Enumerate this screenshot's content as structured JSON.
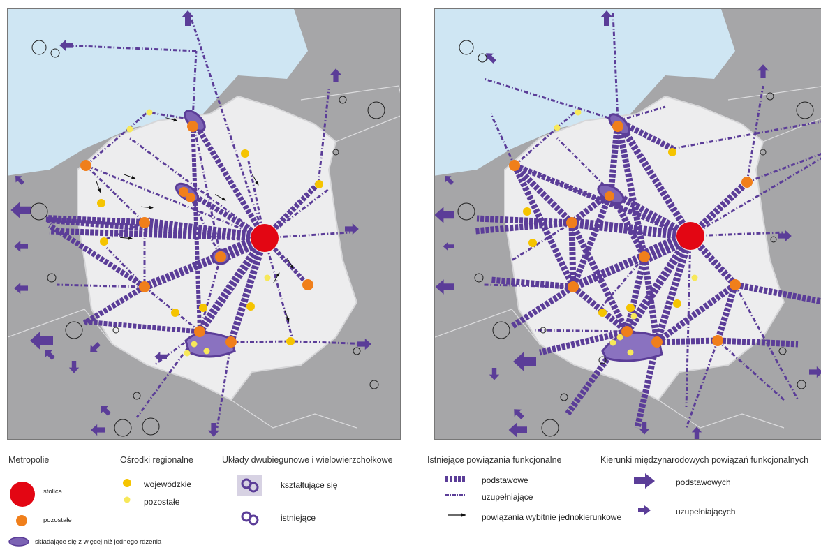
{
  "legend": {
    "metropolie": {
      "title": "Metropolie",
      "stolica": "stolica",
      "pozostale": "pozostałe",
      "wielordzeniowe": "składające się z więcej niż jednego rdzenia"
    },
    "osrodki": {
      "title": "Ośrodki regionalne",
      "wojewodzkie": "wojewódzkie",
      "pozostale": "pozostałe"
    },
    "uklady": {
      "title": "Układy dwubiegunowe i wielowierzchołkowe",
      "ksztaltujace": "kształtujące się",
      "istniejace": "istniejące"
    },
    "powiazania": {
      "title": "Istniejące powiązania funkcjonalne",
      "podstawowe": "podstawowe",
      "uzupelniajace": "uzupełniające",
      "jednokierunkowe": "powiązania wybitnie jednokierunkowe"
    },
    "kierunki": {
      "title": "Kierunki międzynarodowych powiązań funkcjonalnych",
      "podstawowych": "podstawowych",
      "uzupelniajacych": "uzupełniających"
    }
  },
  "colors": {
    "sea": "#cfe6f3",
    "land_poland": "#ededee",
    "land_other": "#a6a6a8",
    "link": "#5b3d98",
    "capital": "#e30613",
    "metropolis": "#f07f1b",
    "regional": "#f5c400",
    "regional_other": "#f7e85a"
  }
}
